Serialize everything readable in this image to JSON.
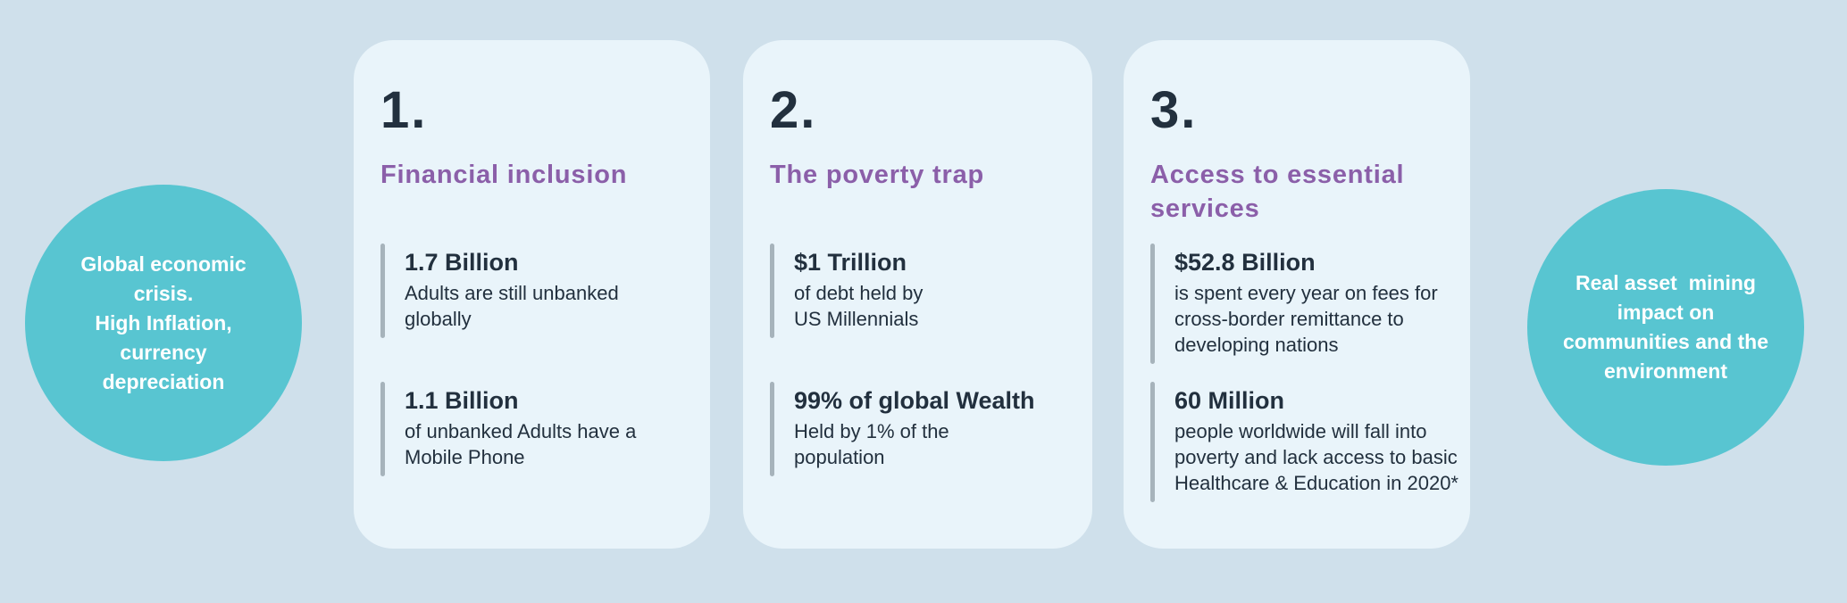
{
  "colors": {
    "bg": "#CFE0EB",
    "card": "#E9F4FA",
    "teal": "#58C5D1",
    "purple": "#8B5FA9",
    "dark": "#22303E",
    "bar": "#A6B3BB",
    "circle-text": "#FFFFFF"
  },
  "left_circle": {
    "text": "Global economic\ncrisis.\nHigh Inflation,\ncurrency\ndepreciation"
  },
  "right_circle": {
    "text": "Real asset  mining\nimpact on\ncommunities and the\nenvironment"
  },
  "cards": [
    {
      "number": "1.",
      "title": "Financial inclusion",
      "stats": [
        {
          "value": "1.7 Billion",
          "description": "Adults are still unbanked\nglobally"
        },
        {
          "value": "1.1 Billion",
          "description": "of unbanked Adults have a\nMobile Phone"
        }
      ]
    },
    {
      "number": "2.",
      "title": "The poverty trap",
      "stats": [
        {
          "value": "$1 Trillion",
          "description": "of debt held by\nUS Millennials"
        },
        {
          "value": "99% of global Wealth",
          "description": "Held by 1% of the\npopulation"
        }
      ]
    },
    {
      "number": "3.",
      "title": "Access to essential\nservices",
      "stats": [
        {
          "value": "$52.8 Billion",
          "description": "is spent every year on fees for\ncross-border remittance to\ndeveloping nations"
        },
        {
          "value": "60 Million",
          "description": "people worldwide will fall into\npoverty and lack access to basic\nHealthcare & Education in 2020*"
        }
      ]
    }
  ]
}
